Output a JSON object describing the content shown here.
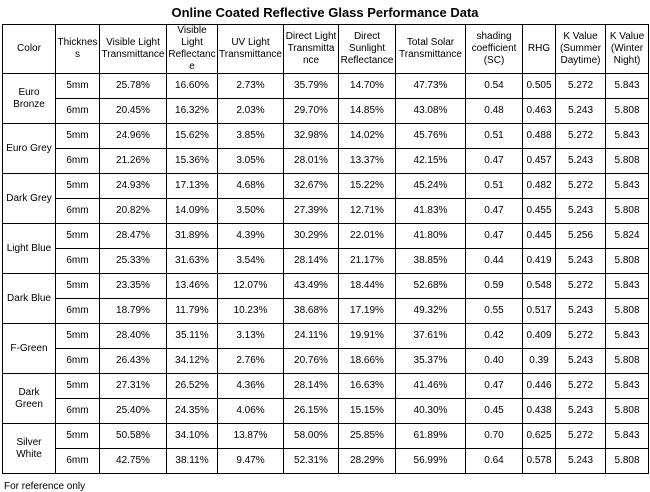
{
  "title": "Online Coated Reflective Glass Performance Data",
  "footnote": "For reference only",
  "table": {
    "columns": [
      "Color",
      "Thickness",
      "Visible Light Transmittance",
      "Visible Light Reflectance",
      "UV Light Transmittance",
      "Direct Light Transmittance",
      "Direct Sunlight Reflectance",
      "Total Solar Transmittance",
      "shading coefficient (SC)",
      "RHG",
      "K Value (Summer Daytime)",
      "K Value (Winter Night)"
    ],
    "groups": [
      {
        "color": "Euro Bronze",
        "rows": [
          [
            "5mm",
            "25.78%",
            "16.60%",
            "2.73%",
            "35.79%",
            "14.70%",
            "47.73%",
            "0.54",
            "0.505",
            "5.272",
            "5.843"
          ],
          [
            "6mm",
            "20.45%",
            "16.32%",
            "2.03%",
            "29.70%",
            "14.85%",
            "43.08%",
            "0.48",
            "0.463",
            "5.243",
            "5.808"
          ]
        ]
      },
      {
        "color": "Euro Grey",
        "rows": [
          [
            "5mm",
            "24.96%",
            "15.62%",
            "3.85%",
            "32.98%",
            "14.02%",
            "45.76%",
            "0.51",
            "0.488",
            "5.272",
            "5.843"
          ],
          [
            "6mm",
            "21.26%",
            "15.36%",
            "3.05%",
            "28.01%",
            "13.37%",
            "42.15%",
            "0.47",
            "0.457",
            "5.243",
            "5.808"
          ]
        ]
      },
      {
        "color": "Dark Grey",
        "rows": [
          [
            "5mm",
            "24.93%",
            "17.13%",
            "4.68%",
            "32.67%",
            "15.22%",
            "45.24%",
            "0.51",
            "0.482",
            "5.272",
            "5.843"
          ],
          [
            "6mm",
            "20.82%",
            "14.09%",
            "3.50%",
            "27.39%",
            "12.71%",
            "41.83%",
            "0.47",
            "0.455",
            "5.243",
            "5.808"
          ]
        ]
      },
      {
        "color": "Light Blue",
        "rows": [
          [
            "5mm",
            "28.47%",
            "31.89%",
            "4.39%",
            "30.29%",
            "22.01%",
            "41.80%",
            "0.47",
            "0.445",
            "5.256",
            "5.824"
          ],
          [
            "6mm",
            "25.33%",
            "31.63%",
            "3.54%",
            "28.14%",
            "21.17%",
            "38.85%",
            "0.44",
            "0.419",
            "5.243",
            "5.808"
          ]
        ]
      },
      {
        "color": "Dark Blue",
        "rows": [
          [
            "5mm",
            "23.35%",
            "13.46%",
            "12.07%",
            "43.49%",
            "18.44%",
            "52.68%",
            "0.59",
            "0.548",
            "5.272",
            "5.843"
          ],
          [
            "6mm",
            "18.79%",
            "11.79%",
            "10.23%",
            "38.68%",
            "17.19%",
            "49.32%",
            "0.55",
            "0.517",
            "5.243",
            "5.808"
          ]
        ]
      },
      {
        "color": "F-Green",
        "rows": [
          [
            "5mm",
            "28.40%",
            "35.11%",
            "3.13%",
            "24.11%",
            "19.91%",
            "37.61%",
            "0.42",
            "0.409",
            "5.272",
            "5.843"
          ],
          [
            "6mm",
            "26.43%",
            "34.12%",
            "2.76%",
            "20.76%",
            "18.66%",
            "35.37%",
            "0.40",
            "0.39",
            "5.243",
            "5.808"
          ]
        ]
      },
      {
        "color": "Dark Green",
        "rows": [
          [
            "5mm",
            "27.31%",
            "26.52%",
            "4.36%",
            "28.14%",
            "16.63%",
            "41.46%",
            "0.47",
            "0.446",
            "5.272",
            "5.843"
          ],
          [
            "6mm",
            "25.40%",
            "24.35%",
            "4.06%",
            "26.15%",
            "15.15%",
            "40.30%",
            "0.45",
            "0.438",
            "5.243",
            "5.808"
          ]
        ]
      },
      {
        "color": "Silver White",
        "rows": [
          [
            "5mm",
            "50.58%",
            "34.10%",
            "13.87%",
            "58.00%",
            "25.85%",
            "61.89%",
            "0.70",
            "0.625",
            "5.272",
            "5.843"
          ],
          [
            "6mm",
            "42.75%",
            "38.11%",
            "9.47%",
            "52.31%",
            "28.29%",
            "56.99%",
            "0.64",
            "0.578",
            "5.243",
            "5.808"
          ]
        ]
      }
    ]
  }
}
